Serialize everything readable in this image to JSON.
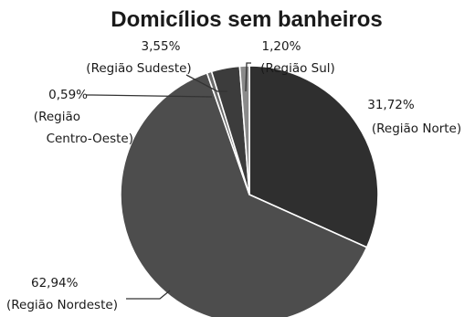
{
  "chart_data": {
    "type": "pie",
    "title": "Domicílios sem banheiros",
    "slices": [
      {
        "label": "Região Norte",
        "percent_label": "31,72%",
        "value": 31.72,
        "color": "#2f2f2f"
      },
      {
        "label": "Região Nordeste",
        "percent_label": "62,94%",
        "value": 62.94,
        "color": "#4d4d4d"
      },
      {
        "label": "Região Centro-Oeste",
        "percent_label": "0,59%",
        "value": 0.59,
        "color": "#6a6a6a"
      },
      {
        "label": "Região Sudeste",
        "percent_label": "3,55%",
        "value": 3.55,
        "color": "#3c3c3c"
      },
      {
        "label": "Região Sul",
        "percent_label": "1,20%",
        "value": 1.2,
        "color": "#8a8a8a"
      }
    ],
    "start_angle": "12 o'clock",
    "direction": "clockwise",
    "legend": "none"
  }
}
